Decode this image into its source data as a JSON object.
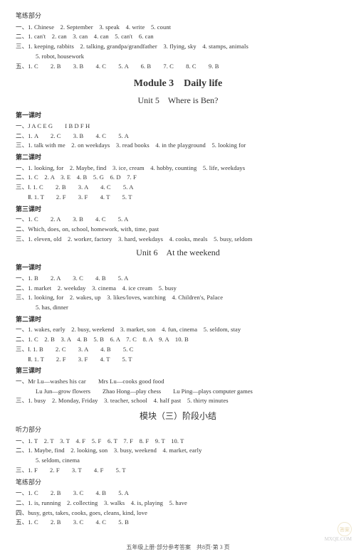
{
  "header": {
    "section": "笔练部分"
  },
  "intro": {
    "l1": "一、1. Chinese　2. September　3. speak　4. write　5. count",
    "l2": "二、1. can't　2. can　3. can　4. can　5. can't　6. can",
    "l3": "三、1. keeping, rabbits　2. talking, grandpa/grandfather　3. flying, sky　4. stamps, animals",
    "l3b": "5. robot, housework",
    "l4": "五、1. C　　2. B　　3. B　　4. C　　5. A　　6. B　　7. C　　8. C　　9. B"
  },
  "module3": {
    "title": "Module 3　Daily life",
    "unit5": {
      "title": "Unit 5　Where is Ben?",
      "c1": {
        "label": "第一课时",
        "l1": "一、J A C E G　　I B D F H",
        "l2": "二、1. A　　2. C　　3. B　　4. C　　5. A",
        "l3": "三、1. talk with me　2. on weekdays　3. read books　4. in the playground　5. looking for"
      },
      "c2": {
        "label": "第二课时",
        "l1": "一、1. looking, for　2. Maybe, find　3. ice, cream　4. hobby, counting　5. life, weekdays",
        "l2": "二、1. C　2. A　3. E　4. B　5. G　6. D　7. F",
        "l3": "三、Ⅰ. 1. C　　2. B　　3. A　　4. C　　5. A",
        "l4": "　　Ⅱ. 1. T　　2. F　　3. F　　4. T　　5. T"
      },
      "c3": {
        "label": "第三课时",
        "l1": "一、1. C　　2. A　　3. B　　4. C　　5. A",
        "l2": "二、Which, does, on, school, homework, with, time, past",
        "l3": "三、1. eleven, old　2. worker, factory　3. hard, weekdays　4. cooks, meals　5. busy, seldom"
      }
    },
    "unit6": {
      "title": "Unit 6　At the weekend",
      "c1": {
        "label": "第一课时",
        "l1": "一、1. B　　2. A　　3. C　　4. B　　5. A",
        "l2": "二、1. market　2. weekday　3. cinema　4. ice cream　5. busy",
        "l3": "三、1. looking, for　2. wakes, up　3. likes/loves, watching　4. Children's, Palace",
        "l3b": "5. has, dinner"
      },
      "c2": {
        "label": "第二课时",
        "l1": "一、1. wakes, early　2. busy, weekend　3. market, son　4. fun, cinema　5. seldom, stay",
        "l2": "二、1. C　2. B　3. A　4. B　5. B　6. A　7. C　8. A　9. A　10. B",
        "l3": "三、Ⅰ. 1. B　　2. C　　3. A　　4. B　　5. C",
        "l4": "　　Ⅱ. 1. T　　2. F　　3. F　　4. T　　5. T"
      },
      "c3": {
        "label": "第三课时",
        "l1": "一、Mr Lu—washes his car　　Mrs Lu—cooks good food",
        "l1b": "Lu Jun—grow flowers　　Zhao Hong—play chess　　Lu Ping—plays computer games",
        "l2": "三、1. busy　2. Monday, Friday　3. teacher, school　4. half past　5. thirty minutes"
      }
    }
  },
  "stage": {
    "title": "模块（三）阶段小结",
    "listen": {
      "label": "听力部分",
      "l1": "一、1. T　2. T　3. T　4. F　5. F　6. T　7. F　8. F　9. T　10. T",
      "l2": "二、1. Maybe, find　2. looking, son　3. busy, weekend　4. market, early",
      "l2b": "5. seldom, cinema",
      "l3": "三、1. F　　2. F　　3. T　　4. F　　5. T"
    },
    "write": {
      "label": "笔练部分",
      "l1": "一、1. C　　2. B　　3. C　　4. B　　5. A",
      "l2": "二、1. is, running　2. collecting　3. walks　4. is, playing　5. have",
      "l3": "四、busy, gets, takes, cooks, goes, cleans, kind, love",
      "l4": "五、1. C　　2. B　　3. C　　4. C　　5. B"
    }
  },
  "footer": "五年级上册·部分参考答案　共8页·第 3 页",
  "watermark": {
    "circle": "答案",
    "site": "MXQE.COM"
  }
}
